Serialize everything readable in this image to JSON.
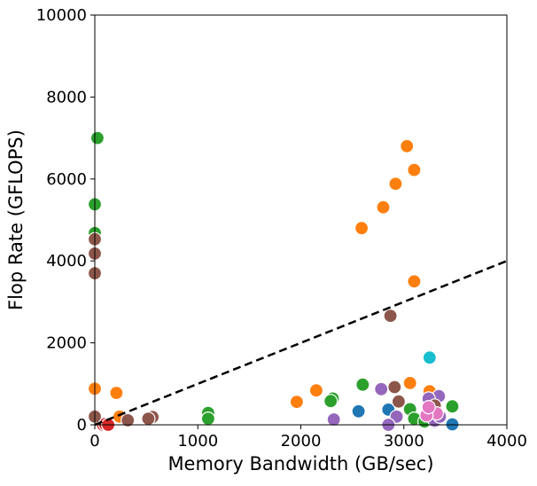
{
  "chart_data": {
    "type": "scatter",
    "xlabel": "Memory Bandwidth (GB/sec)",
    "ylabel": "Flop Rate (GFLOPS)",
    "xlim": [
      0,
      4000
    ],
    "ylim": [
      0,
      10000
    ],
    "xticks": [
      0,
      1000,
      2000,
      3000,
      4000
    ],
    "yticks": [
      0,
      2000,
      4000,
      6000,
      8000,
      10000
    ],
    "xtick_labels": [
      "0",
      "1000",
      "2000",
      "3000",
      "4000"
    ],
    "ytick_labels": [
      "0",
      "2000",
      "4000",
      "6000",
      "8000",
      "10000"
    ],
    "grid": false,
    "reference_line": {
      "style": "dashed",
      "color": "#000000",
      "x": [
        0,
        4000
      ],
      "y": [
        0,
        4000
      ]
    },
    "series": [
      {
        "color": "#1f77b4",
        "points": [
          [
            2560,
            330
          ],
          [
            2850,
            370
          ],
          [
            3180,
            150
          ],
          [
            3300,
            70
          ],
          [
            3470,
            10
          ],
          [
            3200,
            60
          ]
        ]
      },
      {
        "color": "#ff7f0e",
        "points": [
          [
            3030,
            6800
          ],
          [
            3100,
            6220
          ],
          [
            2920,
            5880
          ],
          [
            2800,
            5310
          ],
          [
            2590,
            4800
          ],
          [
            3100,
            3500
          ],
          [
            0,
            880
          ],
          [
            210,
            780
          ],
          [
            2150,
            840
          ],
          [
            1960,
            560
          ],
          [
            3060,
            1020
          ],
          [
            3250,
            820
          ],
          [
            240,
            200
          ],
          [
            3300,
            200
          ]
        ]
      },
      {
        "color": "#2ca02c",
        "points": [
          [
            25,
            7000
          ],
          [
            0,
            5380
          ],
          [
            0,
            4680
          ],
          [
            2600,
            980
          ],
          [
            2310,
            640
          ],
          [
            2290,
            580
          ],
          [
            3470,
            450
          ],
          [
            3060,
            380
          ],
          [
            1100,
            290
          ],
          [
            1100,
            150
          ],
          [
            3100,
            150
          ],
          [
            3200,
            80
          ]
        ]
      },
      {
        "color": "#d62728",
        "points": [
          [
            80,
            0
          ],
          [
            100,
            20
          ],
          [
            130,
            0
          ]
        ]
      },
      {
        "color": "#9467bd",
        "points": [
          [
            2780,
            870
          ],
          [
            3340,
            700
          ],
          [
            3240,
            640
          ],
          [
            2930,
            200
          ],
          [
            2320,
            130
          ],
          [
            2850,
            0
          ],
          [
            3300,
            100
          ],
          [
            3350,
            200
          ]
        ]
      },
      {
        "color": "#8c564b",
        "points": [
          [
            0,
            4530
          ],
          [
            0,
            4180
          ],
          [
            0,
            3700
          ],
          [
            2870,
            2660
          ],
          [
            2910,
            920
          ],
          [
            2950,
            570
          ],
          [
            3300,
            470
          ],
          [
            560,
            190
          ],
          [
            520,
            150
          ],
          [
            320,
            110
          ],
          [
            0,
            200
          ]
        ]
      },
      {
        "color": "#e377c2",
        "points": [
          [
            3320,
            280
          ],
          [
            3220,
            230
          ],
          [
            3240,
            430
          ]
        ]
      },
      {
        "color": "#7f7f7f",
        "points": []
      },
      {
        "color": "#bcbd22",
        "points": []
      },
      {
        "color": "#17becf",
        "points": [
          [
            3250,
            1640
          ]
        ]
      }
    ]
  }
}
